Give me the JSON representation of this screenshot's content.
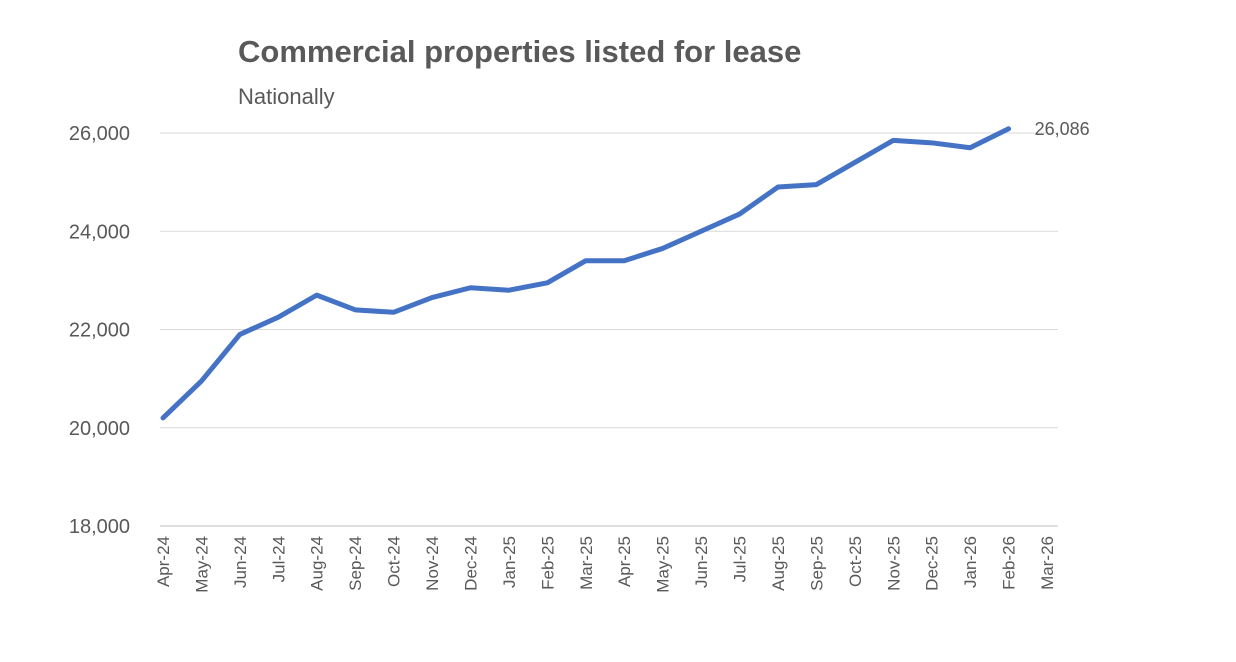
{
  "chart_data": {
    "type": "line",
    "title": "Commercial properties listed for lease",
    "subtitle": "Nationally",
    "categories": [
      "Apr-24",
      "May-24",
      "Jun-24",
      "Jul-24",
      "Aug-24",
      "Sep-24",
      "Oct-24",
      "Nov-24",
      "Dec-24",
      "Jan-25",
      "Feb-25",
      "Mar-25",
      "Apr-25",
      "May-25",
      "Jun-25",
      "Jul-25",
      "Aug-25",
      "Sep-25",
      "Oct-25",
      "Nov-25",
      "Dec-25",
      "Jan-26",
      "Feb-26",
      "Mar-26"
    ],
    "series": [
      {
        "name": "Commercial properties listed for lease",
        "color": "#4472c4",
        "values": [
          20200,
          20950,
          21900,
          22250,
          22700,
          22400,
          22350,
          22650,
          22850,
          22800,
          22950,
          23400,
          23400,
          23650,
          24000,
          24350,
          24900,
          24950,
          25400,
          25850,
          25800,
          25700,
          26086,
          null
        ],
        "value_labels": [
          null,
          null,
          null,
          null,
          null,
          null,
          null,
          null,
          null,
          null,
          null,
          null,
          null,
          null,
          null,
          null,
          null,
          null,
          null,
          null,
          null,
          null,
          "26,086",
          null
        ]
      }
    ],
    "ylim": [
      18000,
      26000
    ],
    "yticks": [
      {
        "value": 18000,
        "label": "18,000"
      },
      {
        "value": 20000,
        "label": "20,000"
      },
      {
        "value": 22000,
        "label": "22,000"
      },
      {
        "value": 24000,
        "label": "24,000"
      },
      {
        "value": 26000,
        "label": "26,000"
      }
    ],
    "grid": true
  }
}
